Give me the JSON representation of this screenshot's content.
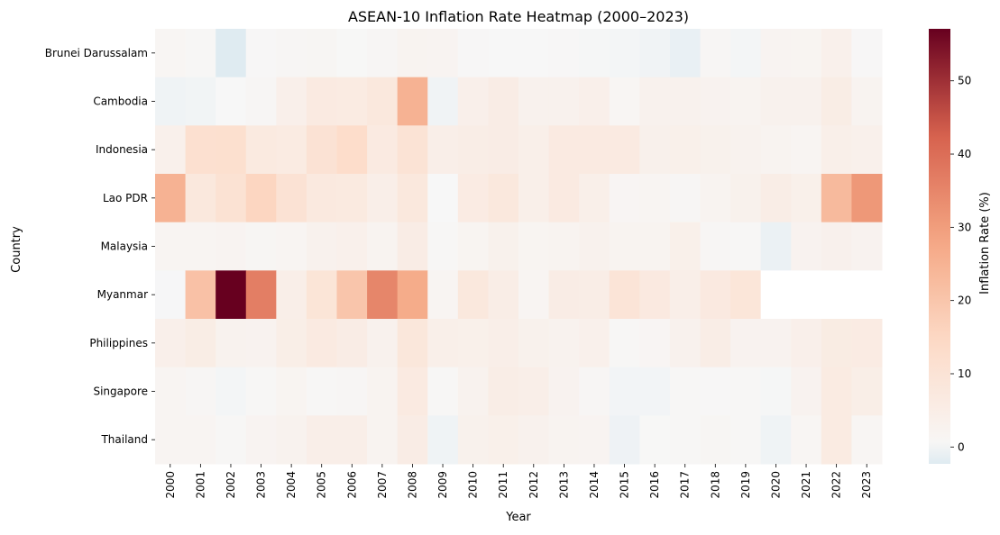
{
  "chart_data": {
    "type": "heatmap",
    "title": "ASEAN-10 Inflation Rate Heatmap (2000–2023)",
    "xlabel": "Year",
    "ylabel": "Country",
    "x": [
      "2000",
      "2001",
      "2002",
      "2003",
      "2004",
      "2005",
      "2006",
      "2007",
      "2008",
      "2009",
      "2010",
      "2011",
      "2012",
      "2013",
      "2014",
      "2015",
      "2016",
      "2017",
      "2018",
      "2019",
      "2020",
      "2021",
      "2022",
      "2023"
    ],
    "y": [
      "Brunei Darussalam",
      "Cambodia",
      "Indonesia",
      "Lao PDR",
      "Malaysia",
      "Myanmar",
      "Philippines",
      "Singapore",
      "Thailand"
    ],
    "values": [
      [
        1.2,
        0.6,
        -2.3,
        0.3,
        0.9,
        1.1,
        0.2,
        0.9,
        2.1,
        1.8,
        0.4,
        0.1,
        0.1,
        0.4,
        -0.2,
        -0.4,
        -0.7,
        -1.3,
        1.0,
        -0.4,
        1.9,
        1.7,
        3.7,
        0.4
      ],
      [
        -0.8,
        -0.6,
        0.1,
        1.0,
        3.9,
        6.4,
        6.1,
        7.7,
        25.0,
        -0.7,
        4.0,
        5.5,
        2.9,
        3.0,
        3.9,
        1.2,
        3.0,
        2.9,
        2.5,
        2.0,
        2.9,
        2.9,
        5.3,
        2.1
      ],
      [
        3.7,
        11.5,
        11.8,
        6.8,
        6.1,
        10.5,
        13.1,
        6.4,
        10.2,
        4.4,
        5.1,
        5.4,
        4.3,
        6.4,
        6.4,
        6.4,
        3.5,
        3.8,
        3.2,
        2.8,
        2.0,
        1.6,
        4.2,
        3.7
      ],
      [
        25.1,
        7.8,
        10.6,
        15.5,
        10.5,
        7.2,
        6.8,
        4.5,
        7.6,
        0.0,
        6.0,
        7.6,
        4.3,
        6.4,
        4.1,
        1.3,
        1.6,
        0.8,
        2.0,
        3.3,
        5.1,
        3.8,
        23.0,
        31.2
      ],
      [
        1.5,
        1.4,
        1.8,
        1.1,
        1.4,
        3.0,
        3.6,
        2.0,
        5.4,
        0.6,
        1.7,
        3.2,
        1.7,
        2.1,
        3.1,
        2.1,
        2.1,
        3.8,
        1.0,
        0.7,
        -1.1,
        2.5,
        3.4,
        2.5
      ],
      [
        -0.1,
        21.1,
        57.1,
        36.6,
        4.5,
        9.4,
        20.0,
        35.0,
        26.8,
        1.5,
        7.7,
        5.0,
        1.5,
        5.5,
        5.0,
        9.5,
        6.9,
        4.6,
        6.9,
        8.8,
        null,
        null,
        null,
        null
      ],
      [
        4.0,
        5.3,
        2.7,
        2.3,
        4.8,
        6.5,
        5.5,
        2.9,
        8.3,
        4.2,
        3.8,
        4.6,
        3.2,
        2.6,
        3.6,
        0.7,
        1.3,
        2.9,
        5.2,
        2.4,
        2.4,
        3.9,
        5.8,
        6.0
      ],
      [
        1.4,
        1.0,
        -0.4,
        0.5,
        1.7,
        0.5,
        1.0,
        2.1,
        6.6,
        0.6,
        2.8,
        5.2,
        4.6,
        2.4,
        1.0,
        -0.5,
        -0.5,
        0.6,
        0.4,
        0.6,
        -0.2,
        2.3,
        6.1,
        4.8
      ],
      [
        1.6,
        1.6,
        0.7,
        1.8,
        2.8,
        4.5,
        4.6,
        2.2,
        5.5,
        -0.8,
        3.3,
        3.8,
        3.0,
        2.2,
        1.9,
        -0.9,
        0.2,
        0.7,
        1.1,
        0.7,
        -0.8,
        1.2,
        6.1,
        1.2
      ]
    ],
    "colormap": "RdBu_r",
    "vmin": -2.3,
    "vmax": 57.1,
    "missing_color": "#ffffff",
    "colorbar": {
      "label": "Inflation Rate (%)",
      "ticks": [
        0,
        10,
        20,
        30,
        40,
        50
      ]
    }
  }
}
